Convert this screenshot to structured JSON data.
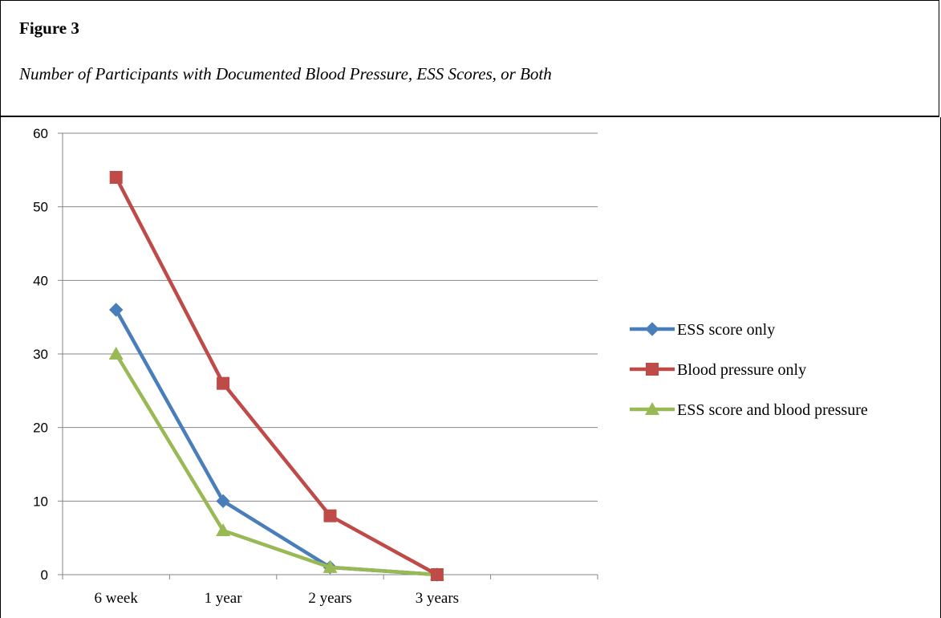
{
  "figure": {
    "label": "Figure 3",
    "title": "Number of Participants with Documented Blood Pressure, ESS Scores, or Both"
  },
  "chart_data": {
    "type": "line",
    "categories": [
      "6 week",
      "1 year",
      "2 years",
      "3 years"
    ],
    "ylim": [
      0,
      60
    ],
    "yticks": [
      0,
      10,
      20,
      30,
      40,
      50,
      60
    ],
    "grid": true,
    "legend_position": "right",
    "series": [
      {
        "name": "ESS score only",
        "values": [
          36,
          10,
          1,
          0
        ],
        "color": "#4a7ebb",
        "marker": "diamond"
      },
      {
        "name": "Blood pressure only",
        "values": [
          54,
          26,
          8,
          0
        ],
        "color": "#be4b48",
        "marker": "square"
      },
      {
        "name": "ESS score and blood pressure",
        "values": [
          30,
          6,
          1,
          0
        ],
        "color": "#98b954",
        "marker": "triangle"
      }
    ]
  }
}
